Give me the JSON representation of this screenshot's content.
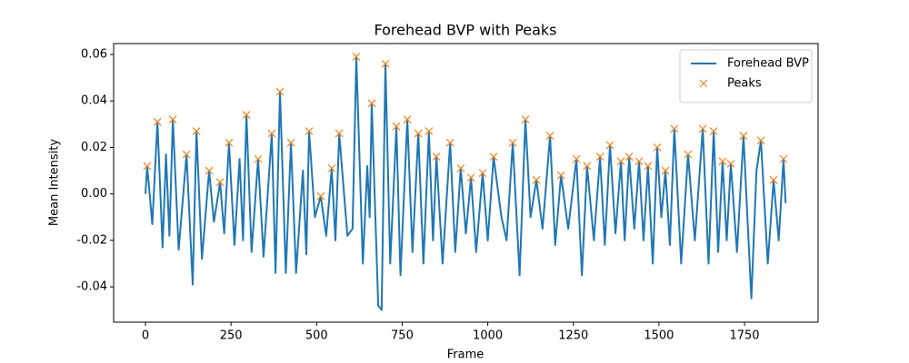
{
  "chart_data": {
    "type": "line",
    "title": "Forehead BVP with Peaks",
    "xlabel": "Frame",
    "ylabel": "Mean Intensity",
    "legend": "upper right",
    "grid": false,
    "xlim": [
      -93,
      1965
    ],
    "ylim": [
      -0.0552,
      0.0647
    ],
    "xticks": [
      0,
      250,
      500,
      750,
      1000,
      1250,
      1500,
      1750
    ],
    "yticks": [
      -0.04,
      -0.02,
      {
        "value": 0,
        "label": "0.00"
      },
      0.02,
      0.04,
      0.06
    ],
    "series": [
      {
        "name": "Forehead BVP",
        "color": "#1f77b4",
        "marker": "none",
        "x": [
          0,
          5,
          20,
          35,
          50,
          60,
          70,
          80,
          97,
          120,
          138,
          149,
          165,
          186,
          200,
          218,
          230,
          244,
          260,
          275,
          285,
          295,
          310,
          329,
          345,
          369,
          380,
          393,
          410,
          425,
          440,
          460,
          470,
          478,
          495,
          512,
          528,
          544,
          555,
          566,
          590,
          605,
          616,
          635,
          648,
          655,
          661,
          680,
          690,
          701,
          715,
          733,
          745,
          765,
          780,
          797,
          812,
          828,
          840,
          850,
          868,
          890,
          905,
          921,
          936,
          951,
          966,
          985,
          1000,
          1017,
          1040,
          1055,
          1073,
          1093,
          1110,
          1125,
          1142,
          1160,
          1182,
          1197,
          1214,
          1235,
          1259,
          1275,
          1290,
          1310,
          1328,
          1342,
          1357,
          1373,
          1389,
          1400,
          1413,
          1428,
          1442,
          1455,
          1468,
          1482,
          1495,
          1507,
          1519,
          1532,
          1545,
          1565,
          1585,
          1605,
          1628,
          1645,
          1660,
          1673,
          1686,
          1698,
          1710,
          1728,
          1747,
          1770,
          1785,
          1798,
          1818,
          1835,
          1850,
          1864,
          1870
        ],
        "values": [
          0.0,
          0.012,
          -0.013,
          0.031,
          -0.023,
          0.017,
          -0.018,
          0.032,
          -0.024,
          0.017,
          -0.039,
          0.027,
          -0.028,
          0.01,
          -0.012,
          0.005,
          -0.017,
          0.022,
          -0.022,
          0.015,
          -0.02,
          0.034,
          -0.025,
          0.015,
          -0.027,
          0.026,
          -0.034,
          0.044,
          -0.034,
          0.022,
          -0.034,
          0.01,
          -0.026,
          0.027,
          -0.01,
          -0.001,
          -0.018,
          0.011,
          -0.02,
          0.026,
          -0.018,
          -0.015,
          0.059,
          -0.03,
          0.012,
          -0.01,
          0.039,
          -0.048,
          -0.05,
          0.056,
          -0.03,
          0.029,
          -0.035,
          0.032,
          -0.025,
          0.026,
          -0.03,
          0.027,
          -0.02,
          0.016,
          -0.03,
          0.022,
          -0.025,
          0.011,
          -0.017,
          0.007,
          -0.025,
          0.009,
          -0.02,
          0.016,
          -0.01,
          -0.02,
          0.022,
          -0.035,
          0.032,
          -0.01,
          0.006,
          -0.015,
          0.025,
          -0.022,
          0.008,
          -0.015,
          0.015,
          -0.035,
          0.012,
          -0.02,
          0.016,
          -0.022,
          0.021,
          -0.017,
          0.014,
          -0.02,
          0.016,
          -0.015,
          0.014,
          -0.02,
          0.012,
          -0.03,
          0.02,
          -0.01,
          0.01,
          -0.022,
          0.028,
          -0.03,
          0.017,
          -0.02,
          0.028,
          -0.03,
          0.027,
          -0.025,
          0.014,
          -0.02,
          0.013,
          -0.025,
          0.025,
          -0.045,
          0.01,
          0.023,
          -0.03,
          0.006,
          -0.02,
          0.015,
          -0.004
        ]
      },
      {
        "name": "Peaks",
        "color": "#ff7f0e",
        "marker": "x",
        "x": [
          5,
          35,
          80,
          120,
          149,
          186,
          218,
          244,
          295,
          329,
          369,
          393,
          425,
          478,
          512,
          544,
          566,
          616,
          661,
          701,
          733,
          765,
          797,
          828,
          850,
          890,
          921,
          951,
          985,
          1017,
          1073,
          1110,
          1142,
          1182,
          1214,
          1259,
          1290,
          1328,
          1357,
          1389,
          1413,
          1442,
          1468,
          1495,
          1519,
          1545,
          1585,
          1628,
          1660,
          1686,
          1710,
          1747,
          1798,
          1835,
          1864
        ],
        "values": [
          0.012,
          0.031,
          0.032,
          0.017,
          0.027,
          0.01,
          0.005,
          0.022,
          0.034,
          0.015,
          0.026,
          0.044,
          0.022,
          0.027,
          -0.001,
          0.011,
          0.026,
          0.059,
          0.039,
          0.056,
          0.029,
          0.032,
          0.026,
          0.027,
          0.016,
          0.022,
          0.011,
          0.007,
          0.009,
          0.016,
          0.022,
          0.032,
          0.006,
          0.025,
          0.008,
          0.015,
          0.012,
          0.016,
          0.021,
          0.014,
          0.016,
          0.014,
          0.012,
          0.02,
          0.01,
          0.028,
          0.017,
          0.028,
          0.027,
          0.014,
          0.013,
          0.025,
          0.023,
          0.006,
          0.015
        ]
      }
    ]
  }
}
